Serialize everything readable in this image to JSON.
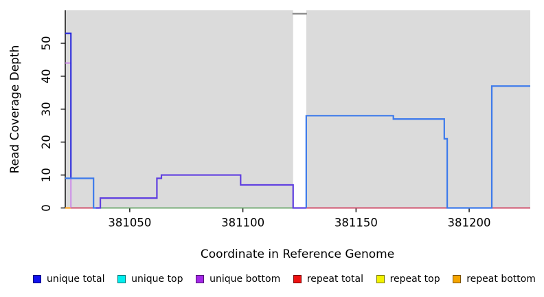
{
  "chart_data": {
    "type": "line",
    "title": "",
    "xlabel": "Coordinate in Reference Genome",
    "ylabel": "Read Coverage Depth",
    "xlim": [
      381021.5,
      381227
    ],
    "ylim": [
      0,
      60
    ],
    "xticks": [
      381050,
      381100,
      381150,
      381200
    ],
    "yticks": [
      0,
      10,
      20,
      30,
      40,
      50
    ],
    "plot_bg": "#DBDBDB",
    "axis_color": "#000000",
    "grid": "off",
    "legend_position": "bottom",
    "gap": {
      "x0": 381122.2,
      "x1": 381128,
      "fill": "#FFFFFF",
      "tick_color": "#8F8F8F"
    },
    "series": [
      {
        "name": "baseline-green",
        "color": "#7CC87F",
        "width": 1.6,
        "points": [
          [
            381037,
            0
          ],
          [
            381122.2,
            0
          ]
        ]
      },
      {
        "name": "baseline-orange",
        "color": "#FFA520",
        "width": 2.2,
        "points": [
          [
            381021.5,
            0
          ],
          [
            381024,
            0
          ]
        ]
      },
      {
        "name": "baseline-red-left",
        "color": "#E04E6E",
        "width": 1.8,
        "points": [
          [
            381024,
            0
          ],
          [
            381037,
            0
          ]
        ]
      },
      {
        "name": "baseline-red-right",
        "color": "#E04E6E",
        "width": 1.8,
        "points": [
          [
            381128,
            0
          ],
          [
            381227,
            0
          ]
        ]
      },
      {
        "name": "unique-bottom-drop",
        "color": "#C875EC",
        "width": 1.6,
        "points": [
          [
            381021.5,
            44
          ],
          [
            381024,
            44
          ],
          [
            381024,
            0
          ]
        ]
      },
      {
        "name": "unique-top-tick",
        "color": "#00D8E6",
        "width": 2,
        "points": [
          [
            381021.5,
            9
          ],
          [
            381023.2,
            9
          ]
        ]
      },
      {
        "name": "unique-total-spike",
        "color": "#2222DD",
        "width": 2,
        "points": [
          [
            381021.5,
            53
          ],
          [
            381024,
            53
          ],
          [
            381024,
            9
          ]
        ]
      },
      {
        "name": "coverage-step-left-blue",
        "color": "#3D7AEB",
        "width": 2.2,
        "points": [
          [
            381021.5,
            9
          ],
          [
            381034,
            9
          ],
          [
            381034,
            0
          ],
          [
            381036.5,
            0
          ]
        ]
      },
      {
        "name": "coverage-staircase-purple",
        "color": "#5F3FE0",
        "width": 2.2,
        "points": [
          [
            381035,
            0
          ],
          [
            381037,
            0
          ],
          [
            381037,
            3
          ],
          [
            381062,
            3
          ],
          [
            381062,
            9
          ],
          [
            381064,
            9
          ],
          [
            381064,
            10
          ],
          [
            381099,
            10
          ],
          [
            381099,
            7
          ],
          [
            381122.2,
            7
          ],
          [
            381122.2,
            0
          ],
          [
            381128,
            0
          ]
        ]
      },
      {
        "name": "coverage-steps-right-blue",
        "color": "#3D7AEB",
        "width": 2.2,
        "points": [
          [
            381128,
            0
          ],
          [
            381128,
            28
          ],
          [
            381166.5,
            28
          ],
          [
            381166.5,
            27
          ],
          [
            381189,
            27
          ],
          [
            381189,
            21
          ],
          [
            381190.3,
            21
          ],
          [
            381190.3,
            0
          ],
          [
            381210,
            0
          ],
          [
            381210,
            37
          ],
          [
            381227,
            37
          ]
        ]
      }
    ]
  },
  "legend": {
    "items": [
      {
        "label": "unique total",
        "color": "#1111EE"
      },
      {
        "label": "unique top",
        "color": "#00EEEE"
      },
      {
        "label": "unique bottom",
        "color": "#A428E8"
      },
      {
        "label": "repeat total",
        "color": "#EE1111"
      },
      {
        "label": "repeat top",
        "color": "#F2F200"
      },
      {
        "label": "repeat bottom",
        "color": "#F5A500"
      }
    ]
  }
}
